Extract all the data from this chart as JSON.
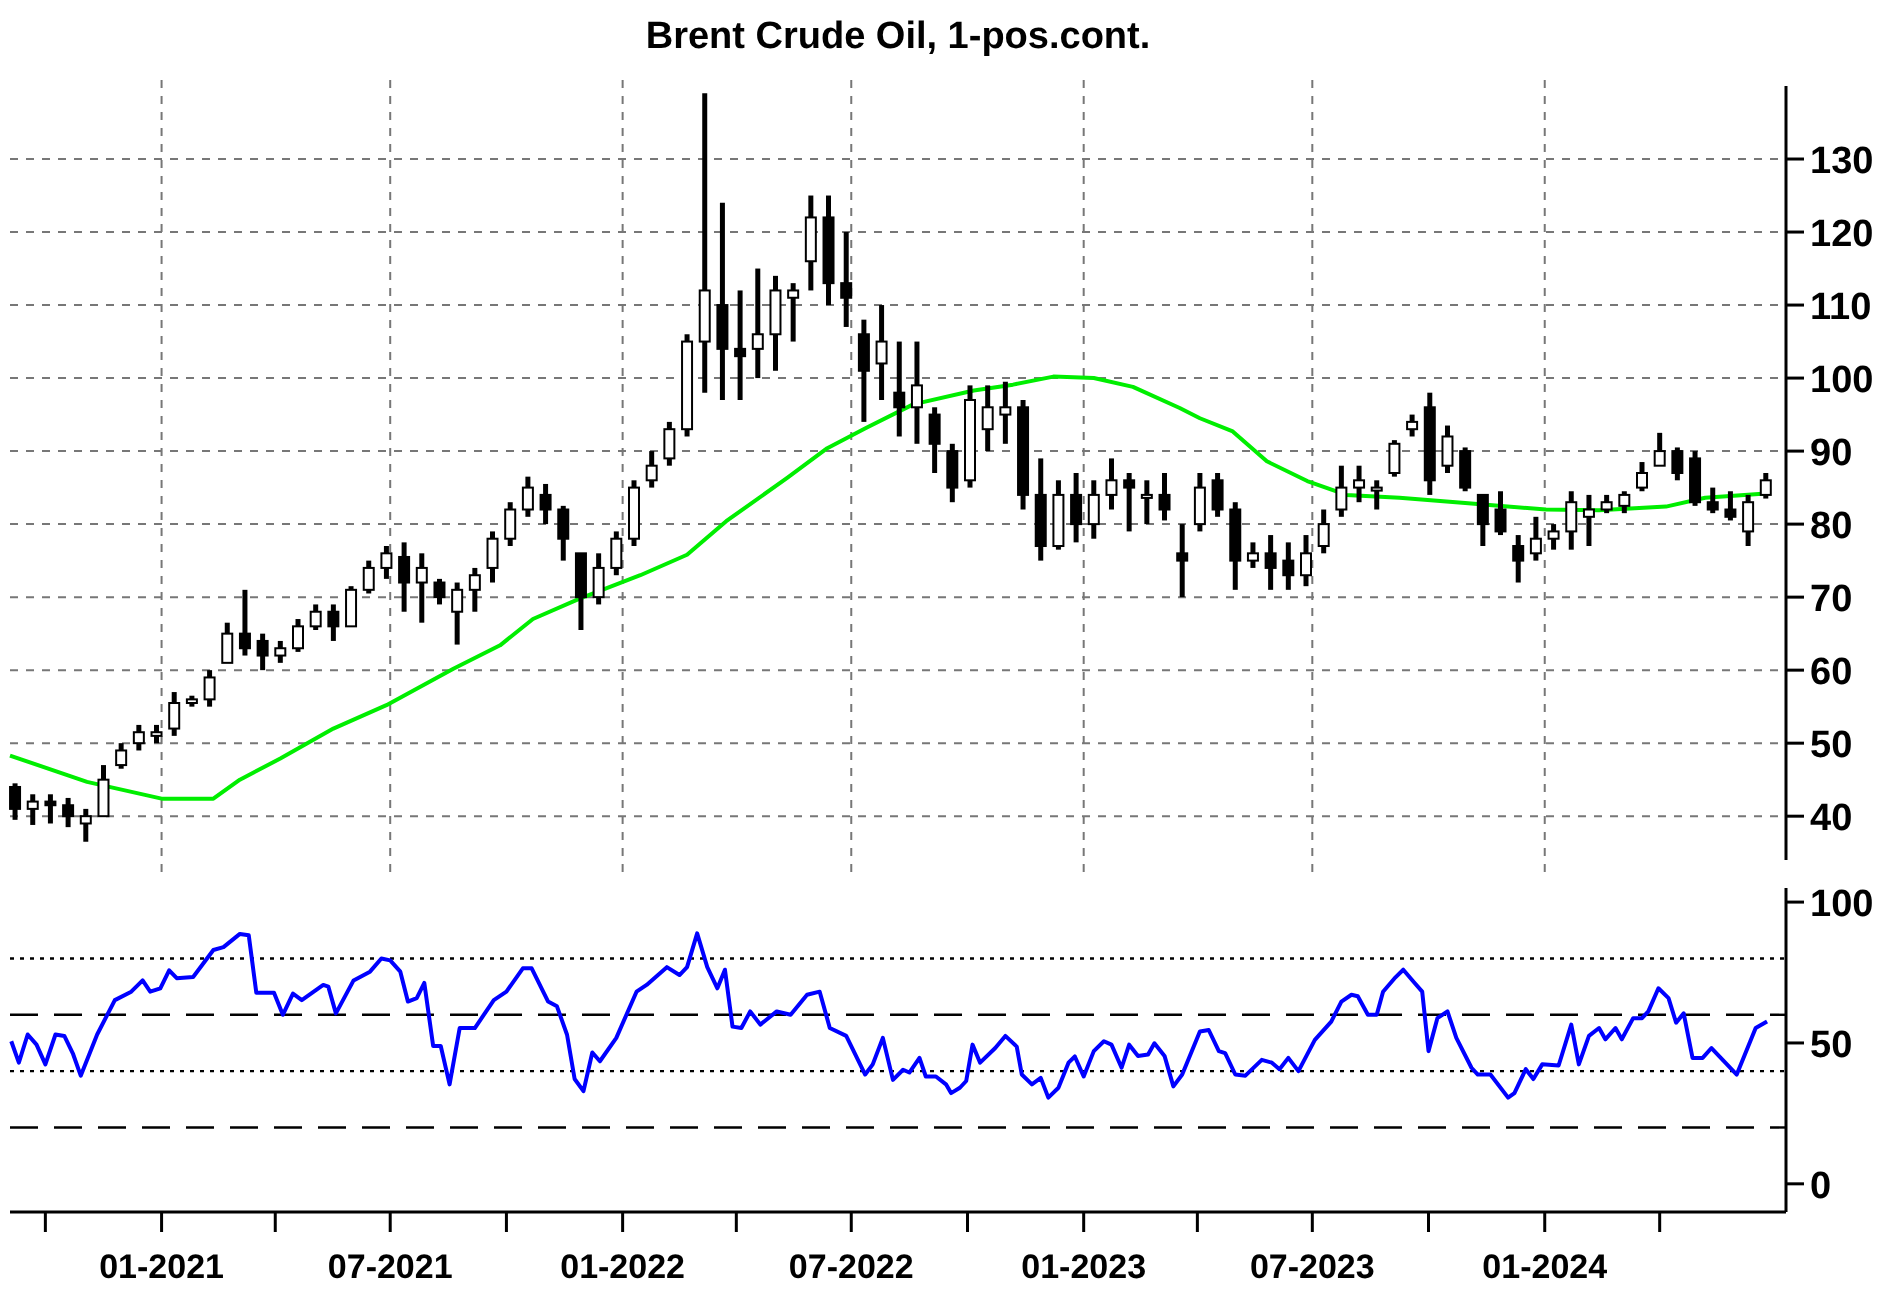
{
  "chart_data": [
    {
      "type": "candlestick",
      "title": "Brent Crude Oil, 1-pos.cont.",
      "color": "#000000",
      "x": [
        "2020-09-07",
        "2020-09-21",
        "2020-10-05",
        "2020-10-19",
        "2020-11-02",
        "2020-11-16",
        "2020-11-30",
        "2020-12-14",
        "2020-12-28",
        "2021-01-11",
        "2021-01-25",
        "2021-02-08",
        "2021-02-22",
        "2021-03-08",
        "2021-03-22",
        "2021-04-05",
        "2021-04-19",
        "2021-05-03",
        "2021-05-17",
        "2021-05-31",
        "2021-06-14",
        "2021-06-28",
        "2021-07-12",
        "2021-07-26",
        "2021-08-09",
        "2021-08-23",
        "2021-09-06",
        "2021-09-20",
        "2021-10-04",
        "2021-10-18",
        "2021-11-01",
        "2021-11-15",
        "2021-11-29",
        "2021-12-13",
        "2021-12-27",
        "2022-01-10",
        "2022-01-24",
        "2022-02-07",
        "2022-02-21",
        "2022-03-07",
        "2022-03-21",
        "2022-04-04",
        "2022-04-18",
        "2022-05-02",
        "2022-05-16",
        "2022-05-30",
        "2022-06-13",
        "2022-06-27",
        "2022-07-11",
        "2022-07-25",
        "2022-08-08",
        "2022-08-22",
        "2022-09-05",
        "2022-09-19",
        "2022-10-03",
        "2022-10-17",
        "2022-10-31",
        "2022-11-14",
        "2022-11-28",
        "2022-12-12",
        "2022-12-26",
        "2023-01-09",
        "2023-01-23",
        "2023-02-06",
        "2023-02-20",
        "2023-03-06",
        "2023-03-20",
        "2023-04-03",
        "2023-04-17",
        "2023-05-01",
        "2023-05-15",
        "2023-05-29",
        "2023-06-12",
        "2023-06-26",
        "2023-07-10",
        "2023-07-24",
        "2023-08-07",
        "2023-08-21",
        "2023-09-04",
        "2023-09-18",
        "2023-10-02",
        "2023-10-16",
        "2023-10-30",
        "2023-11-13",
        "2023-11-27",
        "2023-12-11",
        "2023-12-25",
        "2024-01-08",
        "2024-01-22",
        "2024-02-05",
        "2024-02-19",
        "2024-03-04",
        "2024-03-18",
        "2024-04-01",
        "2024-04-15",
        "2024-04-29",
        "2024-05-13",
        "2024-05-27",
        "2024-06-10",
        "2024-06-24"
      ],
      "ohlc": [
        [
          44,
          44.5,
          39.5,
          41
        ],
        [
          41,
          43,
          38.8,
          42
        ],
        [
          42,
          43,
          39,
          41.5
        ],
        [
          41.5,
          42.5,
          38.5,
          40
        ],
        [
          39,
          41,
          36.5,
          40
        ],
        [
          40,
          47,
          40,
          45
        ],
        [
          47,
          50,
          46.5,
          49
        ],
        [
          50,
          52.5,
          49,
          51.5
        ],
        [
          51,
          52.5,
          50,
          51.5
        ],
        [
          52,
          57,
          51,
          55.5
        ],
        [
          55.5,
          56.5,
          55,
          56
        ],
        [
          56,
          60,
          55,
          59
        ],
        [
          61,
          66.5,
          61,
          65
        ],
        [
          65,
          71,
          62,
          63
        ],
        [
          64,
          65,
          60,
          62
        ],
        [
          62,
          64,
          61,
          63
        ],
        [
          63,
          67,
          62.5,
          66
        ],
        [
          66,
          69,
          65.5,
          68
        ],
        [
          68,
          69,
          64,
          66
        ],
        [
          66,
          71.5,
          66,
          71
        ],
        [
          71,
          75,
          70.5,
          74
        ],
        [
          74,
          77,
          72.5,
          76
        ],
        [
          75.5,
          77.5,
          68,
          72
        ],
        [
          72,
          76,
          66.5,
          74
        ],
        [
          72,
          72.5,
          69,
          70
        ],
        [
          68,
          72,
          63.5,
          71
        ],
        [
          71,
          74,
          68,
          73
        ],
        [
          74,
          79,
          72,
          78
        ],
        [
          78,
          83,
          77,
          82
        ],
        [
          82,
          86.5,
          81,
          85
        ],
        [
          84,
          85.5,
          80,
          82
        ],
        [
          82,
          82.5,
          75,
          78
        ],
        [
          76,
          76,
          65.5,
          70
        ],
        [
          70,
          76,
          69,
          74
        ],
        [
          74,
          79,
          73,
          78
        ],
        [
          78,
          86,
          77,
          85
        ],
        [
          86,
          90,
          85,
          88
        ],
        [
          89,
          94,
          88,
          93
        ],
        [
          93,
          106,
          92,
          105
        ],
        [
          105,
          139,
          98,
          112
        ],
        [
          110,
          124,
          97,
          104
        ],
        [
          104,
          112,
          97,
          103
        ],
        [
          104,
          115,
          100,
          106
        ],
        [
          106,
          114,
          101,
          112
        ],
        [
          111,
          113,
          105,
          112
        ],
        [
          116,
          125,
          112,
          122
        ],
        [
          122,
          125,
          110,
          113
        ],
        [
          113,
          120,
          107,
          111
        ],
        [
          106,
          108,
          94,
          101
        ],
        [
          102,
          110,
          97,
          105
        ],
        [
          98,
          105,
          92,
          96
        ],
        [
          96,
          105,
          91,
          99
        ],
        [
          95,
          96,
          87,
          91
        ],
        [
          90,
          91,
          83,
          85
        ],
        [
          86,
          99,
          85,
          97
        ],
        [
          93,
          99,
          90,
          96
        ],
        [
          95,
          99.5,
          91,
          96
        ],
        [
          96,
          97,
          82,
          84
        ],
        [
          84,
          89,
          75,
          77
        ],
        [
          77,
          86,
          76.5,
          84
        ],
        [
          84,
          87,
          77.5,
          80
        ],
        [
          80,
          86,
          78,
          84
        ],
        [
          84,
          89,
          82,
          86
        ],
        [
          86,
          87,
          79,
          85
        ],
        [
          84,
          86,
          80,
          84
        ],
        [
          84,
          87,
          80.5,
          82
        ],
        [
          76,
          80,
          70,
          75
        ],
        [
          80,
          87,
          79,
          85
        ],
        [
          86,
          87,
          81,
          82
        ],
        [
          82,
          83,
          71,
          75
        ],
        [
          75,
          77.5,
          74,
          76
        ],
        [
          76,
          78.5,
          71,
          74
        ],
        [
          75,
          77.5,
          71,
          73
        ],
        [
          73,
          78.5,
          71.5,
          76
        ],
        [
          77,
          82,
          76,
          80
        ],
        [
          82,
          88,
          81,
          85
        ],
        [
          85,
          88,
          83,
          86
        ],
        [
          85,
          86,
          82,
          85
        ],
        [
          87,
          91.5,
          86.5,
          91
        ],
        [
          93,
          95,
          92,
          94
        ],
        [
          96,
          98,
          84,
          86
        ],
        [
          88,
          93.5,
          87,
          92
        ],
        [
          90,
          90.5,
          84.5,
          85
        ],
        [
          84,
          84,
          77,
          80
        ],
        [
          82,
          84.5,
          78.5,
          79
        ],
        [
          77,
          78.5,
          72,
          75
        ],
        [
          76,
          81,
          75,
          78
        ],
        [
          78,
          80,
          76.5,
          79
        ],
        [
          79,
          84.5,
          76.5,
          83
        ],
        [
          81,
          84,
          77,
          82
        ],
        [
          82,
          84,
          81.5,
          83
        ],
        [
          82.5,
          84.5,
          81.5,
          84
        ],
        [
          85,
          88.5,
          84.5,
          87
        ],
        [
          88,
          92.5,
          88,
          90
        ],
        [
          90,
          90.5,
          86,
          87
        ],
        [
          89,
          90,
          82.5,
          83
        ],
        [
          83,
          85,
          81.5,
          82
        ],
        [
          82,
          84.5,
          80.5,
          81
        ],
        [
          79,
          84,
          77,
          83
        ],
        [
          84,
          87,
          83.5,
          86
        ]
      ],
      "series": [
        {
          "type": "line",
          "color": "#00ee00",
          "x": [
            "2020-09-03",
            "2020-11-03",
            "2021-01-01",
            "2021-02-11",
            "2021-03-04",
            "2021-04-05",
            "2021-05-17",
            "2021-06-28",
            "2021-08-20",
            "2021-09-26",
            "2021-10-22",
            "2021-11-28",
            "2022-01-15",
            "2022-02-21",
            "2022-03-24",
            "2022-05-11",
            "2022-06-12",
            "2022-07-13",
            "2022-08-19",
            "2022-10-06",
            "2022-11-06",
            "2022-12-08",
            "2023-01-09",
            "2023-02-09",
            "2023-03-18",
            "2023-04-03",
            "2023-04-29",
            "2023-05-26",
            "2023-06-27",
            "2023-07-28",
            "2023-09-08",
            "2023-10-30",
            "2024-01-02",
            "2024-02-13",
            "2024-04-06",
            "2024-05-07",
            "2024-06-24"
          ],
          "values": [
            48.3,
            44.7,
            42.4,
            42.4,
            45,
            47.9,
            52,
            55.2,
            60.2,
            63.4,
            67,
            69.8,
            73,
            75.8,
            80.4,
            86.3,
            90.4,
            93.2,
            96.4,
            98.3,
            99.1,
            100.2,
            100,
            98.8,
            95.9,
            94.5,
            92.7,
            88.6,
            85.9,
            84,
            83.6,
            82.9,
            82,
            81.9,
            82.4,
            83.6,
            84.2
          ]
        }
      ],
      "xlim": [
        "2020-09-03",
        "2024-07-10"
      ],
      "ylim": [
        34,
        140
      ],
      "xticks": [
        {
          "value": "2021-01-01",
          "label": null
        },
        {
          "value": "2021-07-01",
          "label": null
        },
        {
          "value": "2022-01-01",
          "label": null
        },
        {
          "value": "2022-07-01",
          "label": null
        },
        {
          "value": "2023-01-01",
          "label": null
        },
        {
          "value": "2023-07-01",
          "label": null
        },
        {
          "value": "2024-01-01",
          "label": null
        }
      ],
      "yticks": [
        40,
        50,
        60,
        70,
        80,
        90,
        100,
        110,
        120,
        130
      ],
      "grid": true,
      "tick_labels": "y"
    },
    {
      "type": "line",
      "series": [
        {
          "color": "#0000ff",
          "x": [
            "2020-09-04",
            "2020-09-10",
            "2020-09-17",
            "2020-09-24",
            "2020-10-01",
            "2020-10-09",
            "2020-10-16",
            "2020-10-23",
            "2020-10-29",
            "2020-11-11",
            "2020-11-25",
            "2020-12-08",
            "2020-12-17",
            "2020-12-23",
            "2020-12-31",
            "2021-01-07",
            "2021-01-13",
            "2021-01-26",
            "2021-02-11",
            "2021-02-19",
            "2021-03-04",
            "2021-03-11",
            "2021-03-17",
            "2021-03-31",
            "2021-04-07",
            "2021-04-15",
            "2021-04-22",
            "2021-05-09",
            "2021-05-13",
            "2021-05-19",
            "2021-06-02",
            "2021-06-15",
            "2021-06-24",
            "2021-07-01",
            "2021-07-09",
            "2021-07-15",
            "2021-07-22",
            "2021-07-28",
            "2021-08-04",
            "2021-08-10",
            "2021-08-17",
            "2021-08-25",
            "2021-09-06",
            "2021-09-21",
            "2021-10-01",
            "2021-10-14",
            "2021-10-21",
            "2021-11-03",
            "2021-11-10",
            "2021-11-18",
            "2021-11-24",
            "2021-12-01",
            "2021-12-08",
            "2021-12-14",
            "2021-12-27",
            "2022-01-12",
            "2022-01-20",
            "2022-02-05",
            "2022-02-15",
            "2022-02-21",
            "2022-03-01",
            "2022-03-09",
            "2022-03-17",
            "2022-03-23",
            "2022-03-29",
            "2022-04-05",
            "2022-04-12",
            "2022-04-20",
            "2022-05-03",
            "2022-05-14",
            "2022-05-27",
            "2022-06-06",
            "2022-06-14",
            "2022-06-27",
            "2022-07-12",
            "2022-07-18",
            "2022-07-26",
            "2022-08-03",
            "2022-08-11",
            "2022-08-16",
            "2022-08-24",
            "2022-08-29",
            "2022-09-06",
            "2022-09-14",
            "2022-09-18",
            "2022-09-25",
            "2022-09-30",
            "2022-10-05",
            "2022-10-11",
            "2022-10-23",
            "2022-10-31",
            "2022-11-09",
            "2022-11-13",
            "2022-11-21",
            "2022-11-28",
            "2022-12-04",
            "2022-12-12",
            "2022-12-20",
            "2022-12-25",
            "2023-01-01",
            "2023-01-09",
            "2023-01-17",
            "2023-01-23",
            "2023-01-31",
            "2023-02-06",
            "2023-02-13",
            "2023-02-21",
            "2023-02-26",
            "2023-03-06",
            "2023-03-13",
            "2023-03-20",
            "2023-04-03",
            "2023-04-10",
            "2023-04-18",
            "2023-04-23",
            "2023-05-01",
            "2023-05-09",
            "2023-05-22",
            "2023-05-30",
            "2023-06-05",
            "2023-06-12",
            "2023-06-20",
            "2023-07-03",
            "2023-07-16",
            "2023-07-24",
            "2023-08-01",
            "2023-08-06",
            "2023-08-14",
            "2023-08-21",
            "2023-08-26",
            "2023-09-04",
            "2023-09-11",
            "2023-09-20",
            "2023-09-26",
            "2023-10-01",
            "2023-10-08",
            "2023-10-16",
            "2023-10-23",
            "2023-11-04",
            "2023-11-09",
            "2023-11-19",
            "2023-12-03",
            "2023-12-08",
            "2023-12-17",
            "2023-12-23",
            "2023-12-30",
            "2024-01-12",
            "2024-01-22",
            "2024-01-28",
            "2024-02-05",
            "2024-02-13",
            "2024-02-18",
            "2024-02-26",
            "2024-03-02",
            "2024-03-11",
            "2024-03-18",
            "2024-03-23",
            "2024-03-31",
            "2024-04-08",
            "2024-04-14",
            "2024-04-20",
            "2024-04-27",
            "2024-05-05",
            "2024-05-12",
            "2024-06-01",
            "2024-06-16",
            "2024-06-25"
          ],
          "values": [
            50.6,
            43,
            53,
            49.4,
            42.4,
            53,
            52.5,
            46,
            38.4,
            53,
            65.2,
            68.2,
            72.2,
            68.2,
            69.4,
            75.8,
            73,
            73.4,
            83,
            84,
            88.7,
            88.2,
            67.8,
            67.8,
            60,
            67.5,
            65.2,
            70.6,
            70,
            60.5,
            72.2,
            75.3,
            80,
            79.3,
            75.3,
            64.7,
            65.9,
            71.3,
            48.9,
            48.9,
            35.3,
            55.3,
            55.3,
            65.2,
            68.2,
            76.5,
            76.5,
            64.7,
            63,
            52.9,
            37.2,
            32.9,
            46.6,
            43.5,
            51.8,
            68.2,
            70.6,
            76.9,
            74.1,
            76.9,
            88.9,
            76.9,
            69.4,
            76,
            55.8,
            55.3,
            61.2,
            56.5,
            61.2,
            60,
            67.1,
            68.2,
            55.3,
            52.5,
            38.8,
            42.4,
            51.8,
            36.9,
            40.5,
            39.5,
            44.7,
            38.1,
            38.1,
            35.3,
            32.2,
            34.1,
            36.5,
            49.4,
            43,
            48.2,
            52.5,
            48.7,
            38.8,
            35.3,
            37.6,
            30.6,
            34.1,
            43,
            45.2,
            38.1,
            47.1,
            50.6,
            49.4,
            41.2,
            49.4,
            45.4,
            45.9,
            49.9,
            45.4,
            34.6,
            38.8,
            54.1,
            54.6,
            47.1,
            46.4,
            38.8,
            38.4,
            44,
            43,
            40.7,
            44.7,
            40,
            51.1,
            57.6,
            64.7,
            67.1,
            66.6,
            60,
            60,
            68.2,
            72.9,
            76,
            71.3,
            68.2,
            47.1,
            58.8,
            61.2,
            51.8,
            41.2,
            38.8,
            38.8,
            30.6,
            32.2,
            40.7,
            37.2,
            42.4,
            42,
            56.5,
            42.4,
            52.5,
            55.3,
            51.3,
            55.3,
            51.3,
            58.8,
            58.8,
            61.2,
            69.4,
            65.9,
            57.2,
            60.5,
            44.7,
            44.7,
            48.2,
            38.8,
            55.3,
            57.6
          ]
        }
      ],
      "xlim": [
        "2020-09-03",
        "2024-07-10"
      ],
      "ylim": [
        -10,
        105
      ],
      "xticks": [
        {
          "value": "2020-10-01",
          "label": null
        },
        {
          "value": "2021-01-01",
          "label": "01-2021"
        },
        {
          "value": "2021-04-01",
          "label": null
        },
        {
          "value": "2021-07-01",
          "label": "07-2021"
        },
        {
          "value": "2021-10-01",
          "label": null
        },
        {
          "value": "2022-01-01",
          "label": "01-2022"
        },
        {
          "value": "2022-04-01",
          "label": null
        },
        {
          "value": "2022-07-01",
          "label": "07-2022"
        },
        {
          "value": "2022-10-01",
          "label": null
        },
        {
          "value": "2023-01-01",
          "label": "01-2023"
        },
        {
          "value": "2023-04-01",
          "label": null
        },
        {
          "value": "2023-07-01",
          "label": "07-2023"
        },
        {
          "value": "2023-10-01",
          "label": null
        },
        {
          "value": "2024-01-01",
          "label": "01-2024"
        },
        {
          "value": "2024-04-01",
          "label": null
        }
      ],
      "yticks": [
        0,
        50,
        100
      ],
      "ref_lines": [
        {
          "axis": "y",
          "value": 80,
          "color": "#000000",
          "line_style": "dotted"
        },
        {
          "axis": "y",
          "value": 60,
          "color": "#000000",
          "line_style": "dashed"
        },
        {
          "axis": "y",
          "value": 40,
          "color": "#000000",
          "line_style": "dotted"
        },
        {
          "axis": "y",
          "value": 20,
          "color": "#000000",
          "line_style": "dashed"
        }
      ]
    }
  ]
}
